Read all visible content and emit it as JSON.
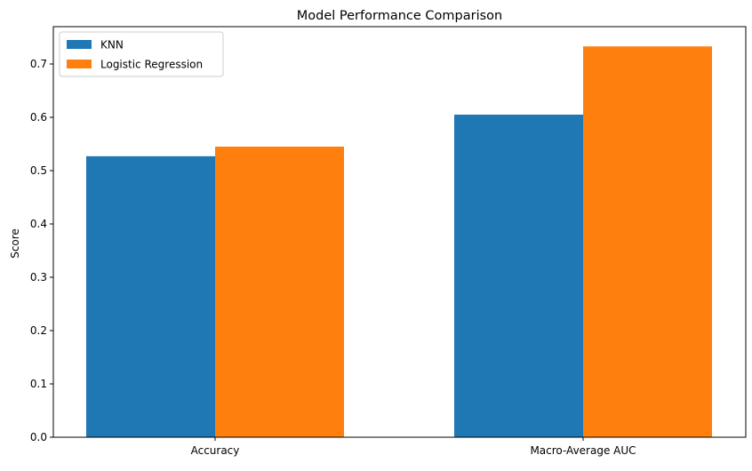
{
  "chart_data": {
    "type": "bar",
    "title": "Model Performance Comparison",
    "xlabel": "",
    "ylabel": "Score",
    "categories": [
      "Accuracy",
      "Macro-Average AUC"
    ],
    "series": [
      {
        "name": "KNN",
        "values": [
          0.527,
          0.605
        ],
        "color": "#1f77b4"
      },
      {
        "name": "Logistic Regression",
        "values": [
          0.545,
          0.733
        ],
        "color": "#ff7f0e"
      }
    ],
    "ylim": [
      0,
      0.77
    ],
    "yticks": [
      "0.0",
      "0.1",
      "0.2",
      "0.3",
      "0.4",
      "0.5",
      "0.6",
      "0.7"
    ],
    "grid": false,
    "legend": "top-left"
  }
}
